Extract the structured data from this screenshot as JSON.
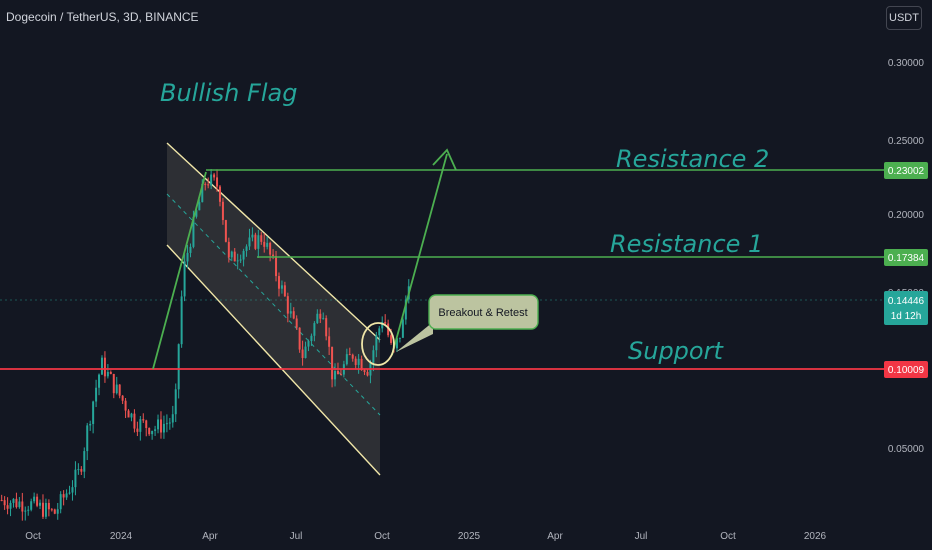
{
  "header": {
    "symbol": "Dogecoin / TetherUS, 3D, BINANCE",
    "currency": "USDT"
  },
  "colors": {
    "background": "#131722",
    "up": "#26a69a",
    "down": "#ef5350",
    "annotation": "#26a69a",
    "level_line": "#4caf50",
    "support_line": "#f23645",
    "channel_stroke": "#f0e6a8",
    "axis_text": "#b2b5be"
  },
  "chart_data": {
    "type": "candlestick",
    "x_tick_labels": [
      "Oct",
      "2024",
      "Apr",
      "Jul",
      "Oct",
      "2025",
      "Apr",
      "Jul",
      "Oct",
      "2026"
    ],
    "y_tick_labels": [
      "0.30000",
      "0.25000",
      "0.20000",
      "0.15000",
      "0.05000"
    ],
    "ylim": [
      0.04,
      0.32
    ],
    "series_path_approx": [
      [
        "2023-09-01",
        0.061
      ],
      [
        "2023-10-01",
        0.06
      ],
      [
        "2023-10-25",
        0.058
      ],
      [
        "2023-11-20",
        0.068
      ],
      [
        "2023-12-12",
        0.102
      ],
      [
        "2023-12-28",
        0.092
      ],
      [
        "2024-01-15",
        0.082
      ],
      [
        "2024-02-05",
        0.08
      ],
      [
        "2024-02-25",
        0.083
      ],
      [
        "2024-03-05",
        0.145
      ],
      [
        "2024-03-18",
        0.18
      ],
      [
        "2024-03-28",
        0.205
      ],
      [
        "2024-04-10",
        0.2
      ],
      [
        "2024-04-20",
        0.15
      ],
      [
        "2024-05-05",
        0.158
      ],
      [
        "2024-05-25",
        0.165
      ],
      [
        "2024-06-10",
        0.14
      ],
      [
        "2024-07-05",
        0.105
      ],
      [
        "2024-07-25",
        0.128
      ],
      [
        "2024-08-05",
        0.095
      ],
      [
        "2024-08-25",
        0.106
      ],
      [
        "2024-09-10",
        0.1
      ],
      [
        "2024-09-25",
        0.123
      ],
      [
        "2024-10-05",
        0.105
      ],
      [
        "2024-10-15",
        0.118
      ],
      [
        "2024-10-22",
        0.14446
      ]
    ],
    "levels": [
      {
        "label": "Resistance 2",
        "price": "0.23002"
      },
      {
        "label": "Resistance 1",
        "price": "0.17384"
      },
      {
        "label": "Support",
        "price": "0.10009"
      }
    ],
    "last_price": {
      "price": "0.14446",
      "countdown": "1d 12h"
    },
    "annotations": {
      "pattern": "Bullish Flag",
      "callout": "Breakout & Retest"
    }
  }
}
